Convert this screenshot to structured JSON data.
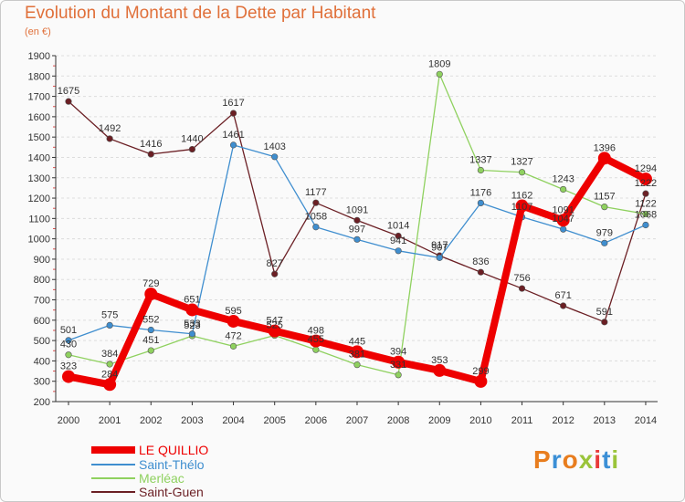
{
  "header": {
    "title": "Evolution du Montant de la Dette par Habitant",
    "subtitle": "(en €)"
  },
  "logo": {
    "text": "Proxiti",
    "letter_colors": [
      "#e87d1e",
      "#3b8fd6",
      "#e87d1e",
      "#9ac43a",
      "#e83a3a",
      "#3b8fd6",
      "#9ac43a"
    ]
  },
  "chart_data": {
    "type": "line",
    "title": "Evolution du Montant de la Dette par Habitant",
    "subtitle": "(en €)",
    "xlabel": "",
    "ylabel": "",
    "x": [
      "2000",
      "2001",
      "2002",
      "2003",
      "2004",
      "2005",
      "2006",
      "2007",
      "2008",
      "2009",
      "2010",
      "2011",
      "2012",
      "2013",
      "2014"
    ],
    "ylim": [
      200,
      1900
    ],
    "yticks": [
      200,
      300,
      400,
      500,
      600,
      700,
      800,
      900,
      1000,
      1100,
      1200,
      1300,
      1400,
      1500,
      1600,
      1700,
      1800,
      1900
    ],
    "grid": "horizontal dashed",
    "legend_position": "bottom-left",
    "series": [
      {
        "name": "Saint-Guen",
        "color": "#6b1f24",
        "values": [
          1675,
          1492,
          1416,
          1440,
          1617,
          827,
          1177,
          1091,
          1014,
          917,
          836,
          756,
          671,
          591,
          1222
        ],
        "labels": [
          "1675",
          "1492",
          "1416",
          "1440",
          "1617",
          "827",
          "1177",
          "1091",
          "1014",
          "917",
          "836",
          "756",
          "671",
          "591",
          "1222"
        ]
      },
      {
        "name": "Merléac",
        "color": "#8fd15f",
        "values": [
          430,
          384,
          451,
          523,
          472,
          525,
          455,
          381,
          331,
          1809,
          1337,
          1327,
          1243,
          1157,
          1122
        ],
        "labels": [
          "430",
          "384",
          "451",
          "523",
          "472",
          "525",
          "455",
          "381",
          "331",
          "1809",
          "1337",
          "1327",
          "1243",
          "1157",
          "1122"
        ]
      },
      {
        "name": "Saint-Thélo",
        "color": "#3f8ecf",
        "values": [
          501,
          575,
          552,
          533,
          1461,
          1403,
          1058,
          997,
          941,
          907,
          1176,
          1107,
          1047,
          979,
          1068
        ],
        "labels": [
          "501",
          "575",
          "552",
          "533",
          "1461",
          "1403",
          "1058",
          "997",
          "941",
          "907",
          "1176",
          "1107",
          "1047",
          "979",
          "1068"
        ]
      },
      {
        "name": "LE QUILLIO",
        "color": "#ee0000",
        "values": [
          323,
          284,
          729,
          651,
          595,
          547,
          498,
          445,
          394,
          353,
          299,
          1162,
          1091,
          1396,
          1294
        ],
        "labels": [
          "323",
          "284",
          "729",
          "651",
          "595",
          "547",
          "498",
          "445",
          "394",
          "353",
          "299",
          "1162",
          "1091",
          "1396",
          "1294"
        ]
      }
    ],
    "legend": [
      "LE QUILLIO",
      "Saint-Thélo",
      "Merléac",
      "Saint-Guen"
    ]
  },
  "legend_entries": [
    {
      "label": "LE QUILLIO",
      "color": "#ee0000"
    },
    {
      "label": "Saint-Thélo",
      "color": "#3f8ecf"
    },
    {
      "label": "Merléac",
      "color": "#8fd15f"
    },
    {
      "label": "Saint-Guen",
      "color": "#6b1f24"
    }
  ]
}
